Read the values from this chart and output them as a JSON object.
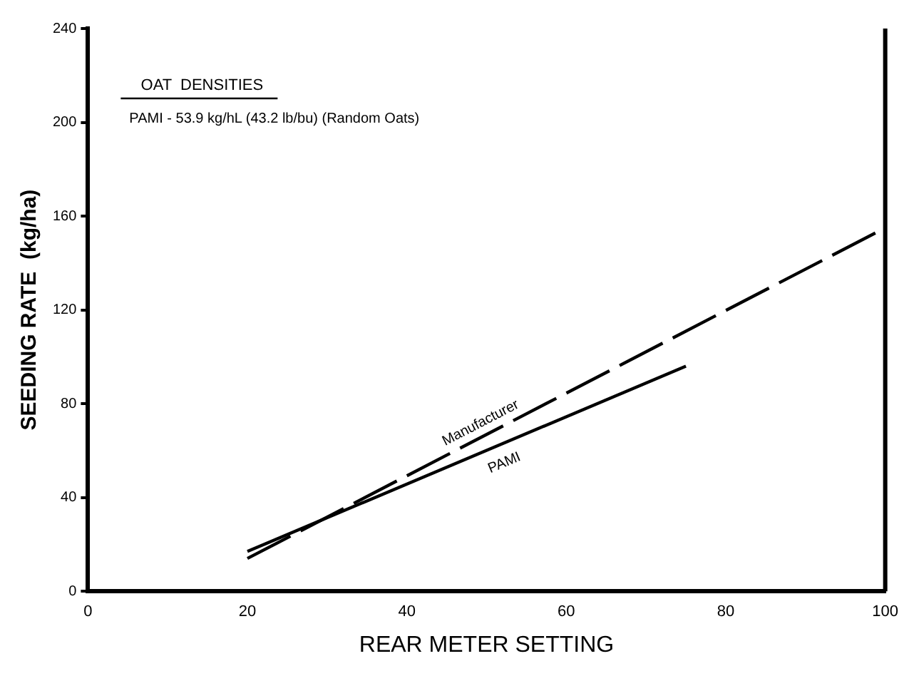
{
  "chart_data": {
    "type": "line",
    "xlabel": "REAR METER SETTING",
    "ylabel": "SEEDING RATE  (kg/ha)",
    "xlim": [
      0,
      100
    ],
    "xticks": [
      0,
      20,
      40,
      60,
      80,
      100
    ],
    "ylim": [
      0,
      240
    ],
    "yticks": [
      0,
      40,
      80,
      120,
      160,
      200,
      240
    ],
    "grid": false,
    "legend": false,
    "marker": "none",
    "annotations": [
      "OAT  DENSITIES",
      "PAMI - 53.9 kg/hL (43.2 lb/bu) (Random Oats)"
    ],
    "series": [
      {
        "name": "Manufacturer",
        "color": "#000000",
        "line_style": "dashed",
        "x": [
          20,
          100
        ],
        "values": [
          14,
          155
        ]
      },
      {
        "name": "PAMI",
        "color": "#000000",
        "line_style": "solid",
        "x": [
          20,
          75
        ],
        "values": [
          17,
          96
        ]
      }
    ]
  }
}
